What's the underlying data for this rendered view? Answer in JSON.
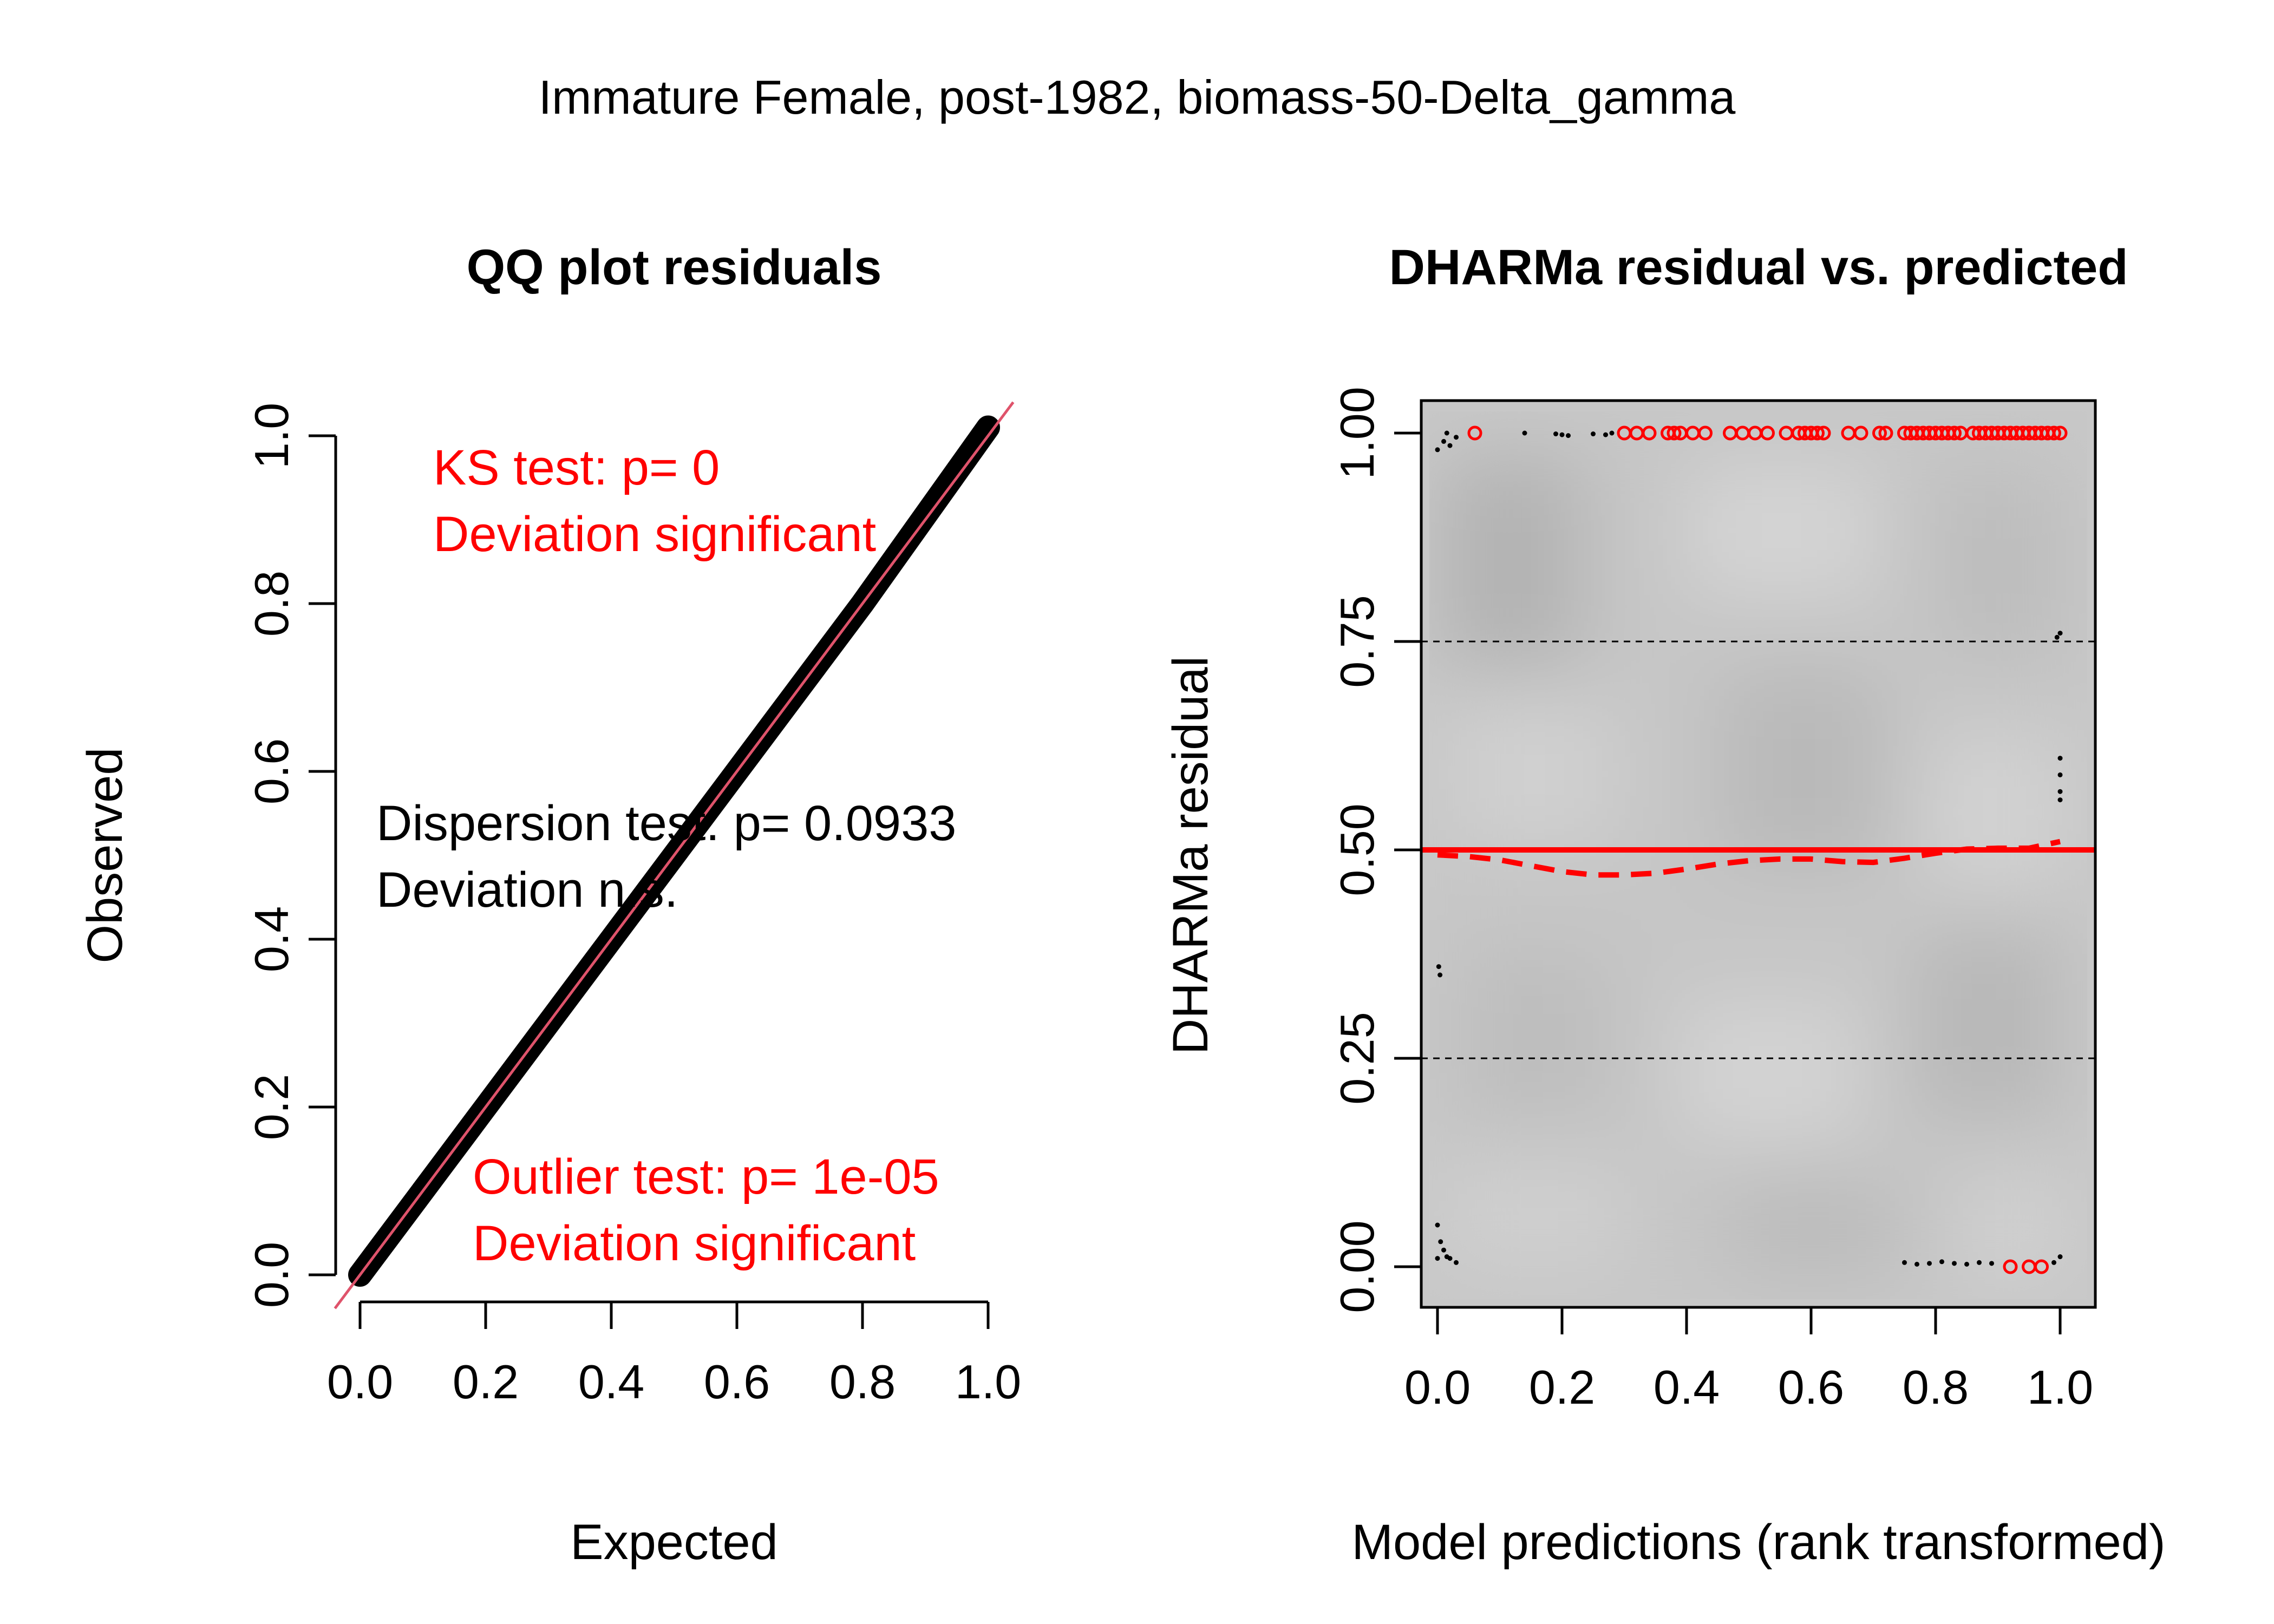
{
  "suptitle": "Immature Female, post-1982, biomass-50-Delta_gamma",
  "colors": {
    "red": "#ff0000",
    "qq_line": "#df536b",
    "black": "#000000",
    "panel_bg": "#c8c8c8"
  },
  "qq_panel": {
    "chart_data": {
      "type": "scatter",
      "title": "QQ plot residuals",
      "xlabel": "Expected",
      "ylabel": "Observed",
      "xlim": [
        0,
        1
      ],
      "ylim": [
        0,
        1
      ],
      "x_ticks": [
        "0.0",
        "0.2",
        "0.4",
        "0.6",
        "0.8",
        "1.0"
      ],
      "y_ticks": [
        "0.0",
        "0.2",
        "0.4",
        "0.6",
        "0.8",
        "1.0"
      ],
      "reference_line": {
        "intercept": 0,
        "slope": 1
      },
      "point_band": [
        {
          "expected": 0.0,
          "observed": 0.0
        },
        {
          "expected": 0.2,
          "observed": 0.2
        },
        {
          "expected": 0.4,
          "observed": 0.4
        },
        {
          "expected": 0.6,
          "observed": 0.6
        },
        {
          "expected": 0.8,
          "observed": 0.8
        },
        {
          "expected": 1.0,
          "observed": 1.01
        }
      ],
      "annotations": {
        "ks_line1": "KS test: p= 0",
        "ks_line2": "Deviation  significant",
        "disp_line1": "Dispersion test: p= 0.0933",
        "disp_line2": "Deviation  n.s.",
        "out_line1": "Outlier test: p= 1e-05",
        "out_line2": "Deviation  significant"
      }
    }
  },
  "res_panel": {
    "chart_data": {
      "type": "scatter",
      "title": "DHARMa residual vs. predicted",
      "xlabel": "Model predictions (rank transformed)",
      "ylabel": "DHARMa residual",
      "xlim": [
        0,
        1
      ],
      "ylim": [
        0,
        1
      ],
      "x_ticks": [
        "0.0",
        "0.2",
        "0.4",
        "0.6",
        "0.8",
        "1.0"
      ],
      "y_ticks": [
        "0.00",
        "0.25",
        "0.50",
        "0.75",
        "1.00"
      ],
      "hlines": [
        0.25,
        0.5,
        0.75
      ],
      "quantile_fit": [
        {
          "x": 0.0,
          "y": 0.494
        },
        {
          "x": 0.05,
          "y": 0.492
        },
        {
          "x": 0.1,
          "y": 0.488
        },
        {
          "x": 0.15,
          "y": 0.481
        },
        {
          "x": 0.2,
          "y": 0.474
        },
        {
          "x": 0.25,
          "y": 0.47
        },
        {
          "x": 0.3,
          "y": 0.47
        },
        {
          "x": 0.35,
          "y": 0.472
        },
        {
          "x": 0.4,
          "y": 0.477
        },
        {
          "x": 0.45,
          "y": 0.483
        },
        {
          "x": 0.5,
          "y": 0.487
        },
        {
          "x": 0.55,
          "y": 0.489
        },
        {
          "x": 0.6,
          "y": 0.489
        },
        {
          "x": 0.65,
          "y": 0.486
        },
        {
          "x": 0.7,
          "y": 0.485
        },
        {
          "x": 0.75,
          "y": 0.49
        },
        {
          "x": 0.8,
          "y": 0.496
        },
        {
          "x": 0.85,
          "y": 0.501
        },
        {
          "x": 0.9,
          "y": 0.502
        },
        {
          "x": 0.95,
          "y": 0.502
        },
        {
          "x": 1.0,
          "y": 0.51
        }
      ],
      "outliers_top_x": [
        0.06,
        0.3,
        0.32,
        0.34,
        0.37,
        0.38,
        0.39,
        0.41,
        0.43,
        0.47,
        0.49,
        0.51,
        0.53,
        0.56,
        0.58,
        0.59,
        0.6,
        0.61,
        0.62,
        0.66,
        0.68,
        0.71,
        0.72,
        0.75,
        0.76,
        0.77,
        0.78,
        0.79,
        0.8,
        0.81,
        0.82,
        0.83,
        0.84,
        0.86,
        0.87,
        0.88,
        0.89,
        0.9,
        0.91,
        0.92,
        0.93,
        0.94,
        0.95,
        0.96,
        0.97,
        0.98,
        0.99,
        1.0
      ],
      "outliers_bottom_x": [
        0.92,
        0.95,
        0.97
      ],
      "black_points": [
        {
          "x": 0.0,
          "y": 0.98
        },
        {
          "x": 0.01,
          "y": 0.99
        },
        {
          "x": 0.015,
          "y": 1.0
        },
        {
          "x": 0.02,
          "y": 0.985
        },
        {
          "x": 0.03,
          "y": 0.995
        },
        {
          "x": 0.14,
          "y": 1.0
        },
        {
          "x": 0.19,
          "y": 0.999
        },
        {
          "x": 0.2,
          "y": 0.998
        },
        {
          "x": 0.21,
          "y": 0.997
        },
        {
          "x": 0.25,
          "y": 0.999
        },
        {
          "x": 0.27,
          "y": 0.998
        },
        {
          "x": 0.28,
          "y": 1.0
        },
        {
          "x": 1.0,
          "y": 0.76
        },
        {
          "x": 0.995,
          "y": 0.755
        },
        {
          "x": 1.0,
          "y": 0.61
        },
        {
          "x": 1.0,
          "y": 0.59
        },
        {
          "x": 1.0,
          "y": 0.57
        },
        {
          "x": 1.0,
          "y": 0.56
        },
        {
          "x": 0.002,
          "y": 0.36
        },
        {
          "x": 0.004,
          "y": 0.35
        },
        {
          "x": 0.0,
          "y": 0.05
        },
        {
          "x": 0.005,
          "y": 0.03
        },
        {
          "x": 0.01,
          "y": 0.02
        },
        {
          "x": 0.0,
          "y": 0.01
        },
        {
          "x": 0.02,
          "y": 0.01
        },
        {
          "x": 0.03,
          "y": 0.005
        },
        {
          "x": 0.015,
          "y": 0.012
        },
        {
          "x": 0.75,
          "y": 0.005
        },
        {
          "x": 0.77,
          "y": 0.003
        },
        {
          "x": 0.79,
          "y": 0.004
        },
        {
          "x": 0.81,
          "y": 0.006
        },
        {
          "x": 0.83,
          "y": 0.004
        },
        {
          "x": 0.85,
          "y": 0.003
        },
        {
          "x": 0.87,
          "y": 0.005
        },
        {
          "x": 0.89,
          "y": 0.004
        },
        {
          "x": 0.99,
          "y": 0.005
        },
        {
          "x": 1.0,
          "y": 0.012
        }
      ]
    }
  }
}
